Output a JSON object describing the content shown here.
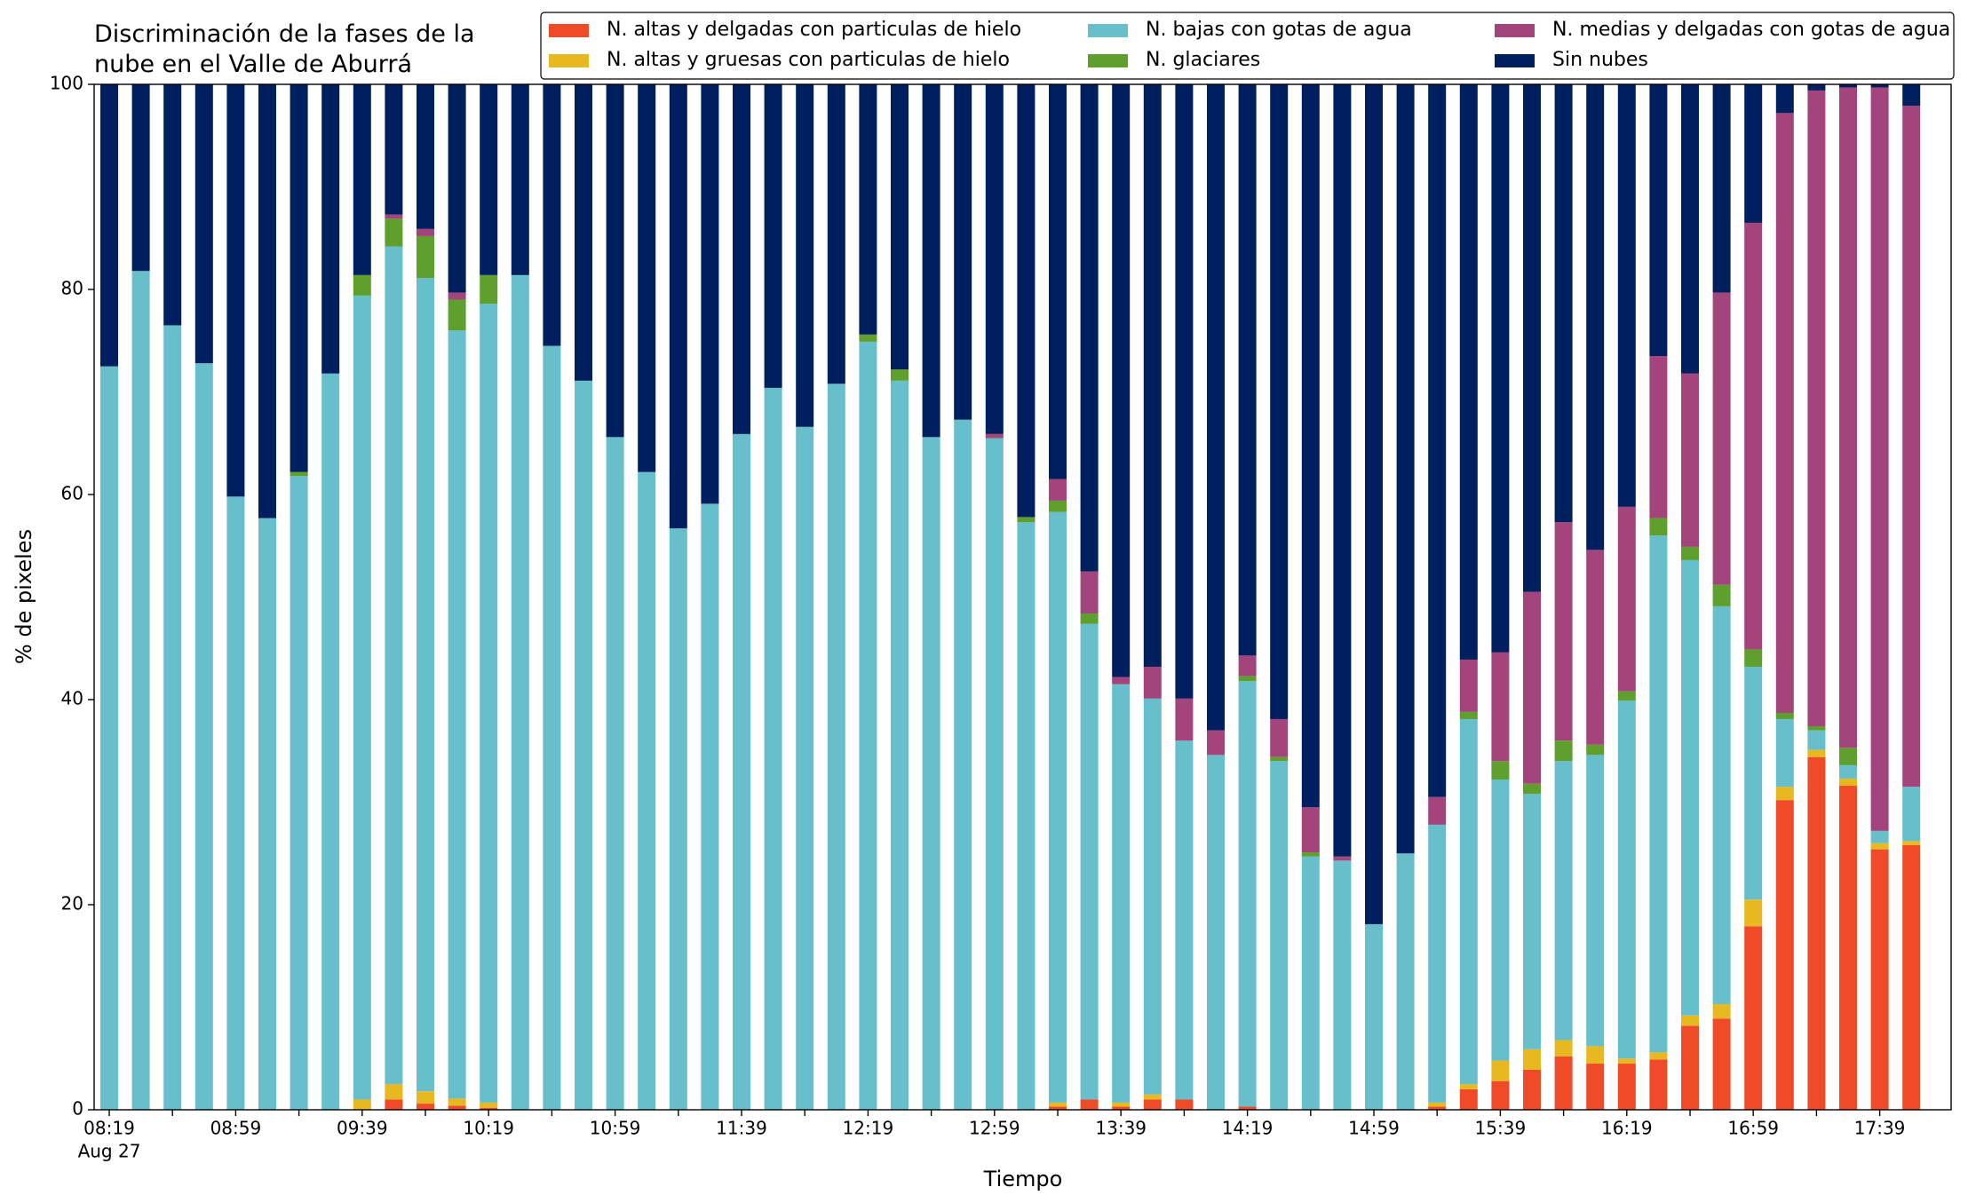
{
  "chart_data": {
    "type": "stacked_bar",
    "title": "Discriminación de la fases de la\nnube en el Valle de Aburrá",
    "xlabel": "Tiempo",
    "ylabel": "% de pixeles",
    "date_label": "Aug 27",
    "categories": [
      "08:19",
      null,
      null,
      null,
      "08:59",
      null,
      null,
      null,
      "09:39",
      null,
      null,
      null,
      "10:19",
      null,
      null,
      null,
      "10:59",
      null,
      null,
      null,
      "11:39",
      null,
      null,
      null,
      "12:19",
      null,
      null,
      null,
      "12:59",
      null,
      null,
      null,
      "13:39",
      null,
      null,
      null,
      "14:19",
      null,
      null,
      null,
      "14:59",
      null,
      null,
      null,
      "15:39",
      null,
      null,
      null,
      "16:19",
      null,
      null,
      null,
      "16:59",
      null,
      null,
      null,
      "17:39",
      null
    ],
    "ylim": [
      0,
      100
    ],
    "yticks": [
      0,
      20,
      40,
      60,
      80,
      100
    ],
    "legend": "top-right",
    "series": [
      {
        "name": "N. altas y delgadas con particulas de hielo",
        "color": "#f04b28",
        "values": [
          0,
          0,
          0,
          0,
          0,
          0,
          0,
          0,
          0,
          1,
          0.6,
          0.4,
          0.2,
          0,
          0,
          0,
          0,
          0,
          0,
          0,
          0,
          0,
          0,
          0,
          0,
          0,
          0,
          0,
          0,
          0,
          0.3,
          1,
          0.3,
          1,
          1,
          0,
          0.3,
          0,
          0,
          0,
          0,
          0,
          0.3,
          2,
          2.8,
          3.9,
          5.2,
          4.5,
          4.5,
          4.9,
          8.2,
          8.9,
          17.9,
          30.2,
          34.4,
          31.6,
          25.4,
          25.8
        ]
      },
      {
        "name": "N. altas y gruesas con particulas de hielo",
        "color": "#e8b820",
        "values": [
          0,
          0,
          0,
          0,
          0,
          0,
          0,
          0,
          1,
          1.5,
          1.2,
          0.7,
          0.5,
          0,
          0,
          0,
          0,
          0,
          0,
          0,
          0,
          0,
          0,
          0,
          0,
          0,
          0,
          0,
          0,
          0,
          0.4,
          0,
          0.4,
          0.5,
          0,
          0,
          0,
          0,
          0,
          0,
          0,
          0,
          0.4,
          0.5,
          2,
          2,
          1.6,
          1.7,
          0.5,
          0.7,
          1,
          1.4,
          2.6,
          1.3,
          0.7,
          0.7,
          0.6,
          0.4
        ]
      },
      {
        "name": "N. bajas con gotas de agua",
        "color": "#66bfca",
        "values": [
          72.5,
          81.8,
          76.5,
          72.8,
          59.8,
          57.7,
          61.8,
          71.8,
          78.4,
          81.7,
          79.3,
          74.9,
          77.9,
          81.4,
          74.5,
          71.1,
          65.6,
          62.2,
          56.7,
          59.1,
          65.9,
          70.4,
          66.6,
          70.8,
          74.9,
          71.1,
          65.6,
          67.3,
          65.5,
          57.3,
          57.6,
          46.4,
          40.8,
          38.6,
          35,
          34.6,
          41.5,
          34,
          24.7,
          24.3,
          18.1,
          25,
          27.1,
          35.6,
          27.4,
          24.9,
          27.2,
          28.4,
          34.9,
          50.4,
          44.4,
          38.8,
          22.7,
          6.6,
          1.9,
          1.3,
          1.2,
          5.3
        ]
      },
      {
        "name": "N. glaciares",
        "color": "#5e9f2e",
        "values": [
          0,
          0,
          0,
          0,
          0,
          0,
          0.4,
          0,
          2,
          2.7,
          4.1,
          3,
          2.8,
          0,
          0,
          0,
          0,
          0,
          0,
          0,
          0,
          0,
          0,
          0,
          0.7,
          1.1,
          0,
          0,
          0,
          0.5,
          1.1,
          1,
          0,
          0,
          0,
          0,
          0.5,
          0.4,
          0.4,
          0,
          0,
          0,
          0,
          0.7,
          1.8,
          1,
          2,
          1,
          0.9,
          1.7,
          1.3,
          2.1,
          1.7,
          0.6,
          0.4,
          1.7,
          0,
          0
        ]
      },
      {
        "name": "N. medias y delgadas con gotas de agua",
        "color": "#a4447c",
        "values": [
          0,
          0,
          0,
          0,
          0,
          0,
          0,
          0,
          0,
          0.4,
          0.7,
          0.7,
          0,
          0,
          0,
          0,
          0,
          0,
          0,
          0,
          0,
          0,
          0,
          0,
          0,
          0,
          0,
          0,
          0.4,
          0,
          2.1,
          4.1,
          0.7,
          3.1,
          4.1,
          2.4,
          2,
          3.7,
          4.4,
          0.4,
          0,
          0,
          2.7,
          5.1,
          10.6,
          18.7,
          21.3,
          19,
          18,
          15.8,
          16.9,
          28.5,
          41.6,
          58.5,
          62,
          64.4,
          72.5,
          66.4
        ]
      },
      {
        "name": "Sin nubes",
        "color": "#001f5e",
        "values": [
          27.5,
          18.2,
          23.5,
          27.2,
          40.2,
          42.3,
          37.8,
          28.2,
          18.6,
          12.7,
          14.1,
          20.3,
          18.6,
          18.6,
          25.5,
          28.9,
          34.4,
          37.8,
          43.3,
          40.9,
          34.1,
          29.6,
          33.4,
          29.2,
          24.4,
          27.8,
          34.4,
          32.7,
          34.1,
          42.2,
          38.5,
          47.5,
          57.8,
          56.8,
          59.9,
          63,
          55.7,
          61.9,
          70.5,
          75.3,
          81.9,
          75,
          69.5,
          56.1,
          55.4,
          49.5,
          42.7,
          45.4,
          41.2,
          26.5,
          28.2,
          20.3,
          13.5,
          2.8,
          0.6,
          0.3,
          0.3,
          2.1
        ]
      }
    ]
  }
}
